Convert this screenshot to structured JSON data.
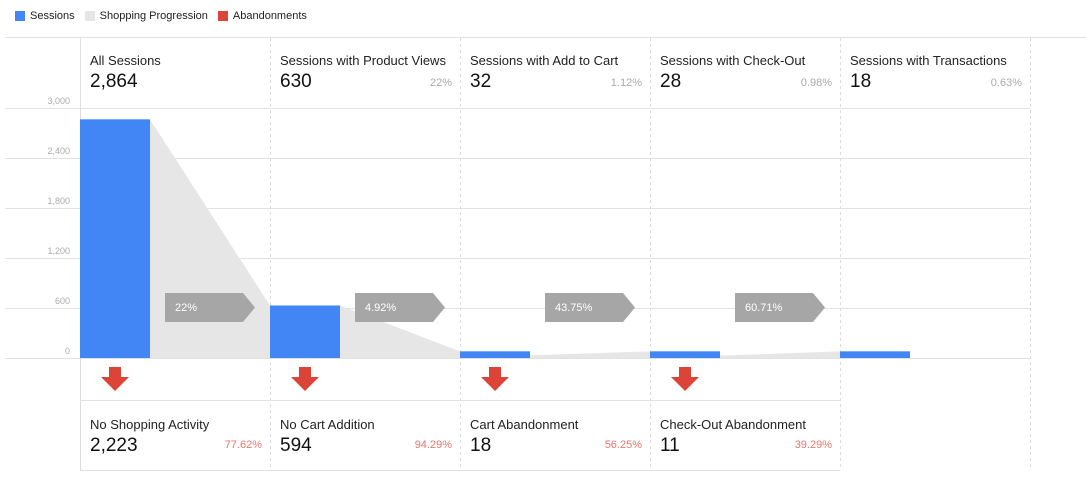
{
  "legend": [
    {
      "label": "Sessions",
      "color": "#4285f4"
    },
    {
      "label": "Shopping Progression",
      "color": "#e6e6e6"
    },
    {
      "label": "Abandonments",
      "color": "#db4437"
    }
  ],
  "stages": [
    {
      "name": "All Sessions",
      "value": "2,864",
      "pct": ""
    },
    {
      "name": "Sessions with Product Views",
      "value": "630",
      "pct": "22%"
    },
    {
      "name": "Sessions with Add to Cart",
      "value": "32",
      "pct": "1.12%"
    },
    {
      "name": "Sessions with Check-Out",
      "value": "28",
      "pct": "0.98%"
    },
    {
      "name": "Sessions with Transactions",
      "value": "18",
      "pct": "0.63%"
    }
  ],
  "progression_labels": [
    "22%",
    "4.92%",
    "43.75%",
    "60.71%"
  ],
  "abandonments": [
    {
      "name": "No Shopping Activity",
      "value": "2,223",
      "pct": "77.62%"
    },
    {
      "name": "No Cart Addition",
      "value": "594",
      "pct": "94.29%"
    },
    {
      "name": "Cart Abandonment",
      "value": "18",
      "pct": "56.25%"
    },
    {
      "name": "Check-Out Abandonment",
      "value": "11",
      "pct": "39.29%"
    }
  ],
  "chart_data": {
    "type": "bar",
    "categories": [
      "All Sessions",
      "Sessions with Product Views",
      "Sessions with Add to Cart",
      "Sessions with Check-Out",
      "Sessions with Transactions"
    ],
    "series": [
      {
        "name": "Sessions",
        "values": [
          2864,
          630,
          32,
          28,
          18
        ]
      }
    ],
    "progression_pct": [
      "22%",
      "4.92%",
      "43.75%",
      "60.71%"
    ],
    "abandonments": {
      "labels": [
        "No Shopping Activity",
        "No Cart Addition",
        "Cart Abandonment",
        "Check-Out Abandonment"
      ],
      "values": [
        2223,
        594,
        18,
        11
      ],
      "pct": [
        "77.62%",
        "94.29%",
        "56.25%",
        "39.29%"
      ]
    },
    "yticks": [
      "0",
      "600",
      "1,200",
      "1,800",
      "2,400",
      "3,000"
    ],
    "ylim": [
      0,
      3000
    ],
    "grid": true,
    "legend_position": "top-left",
    "colors": {
      "sessions": "#4285f4",
      "progression": "#e6e6e6",
      "progression_arrow": "#a6a6a6",
      "abandonment": "#db4437"
    }
  }
}
